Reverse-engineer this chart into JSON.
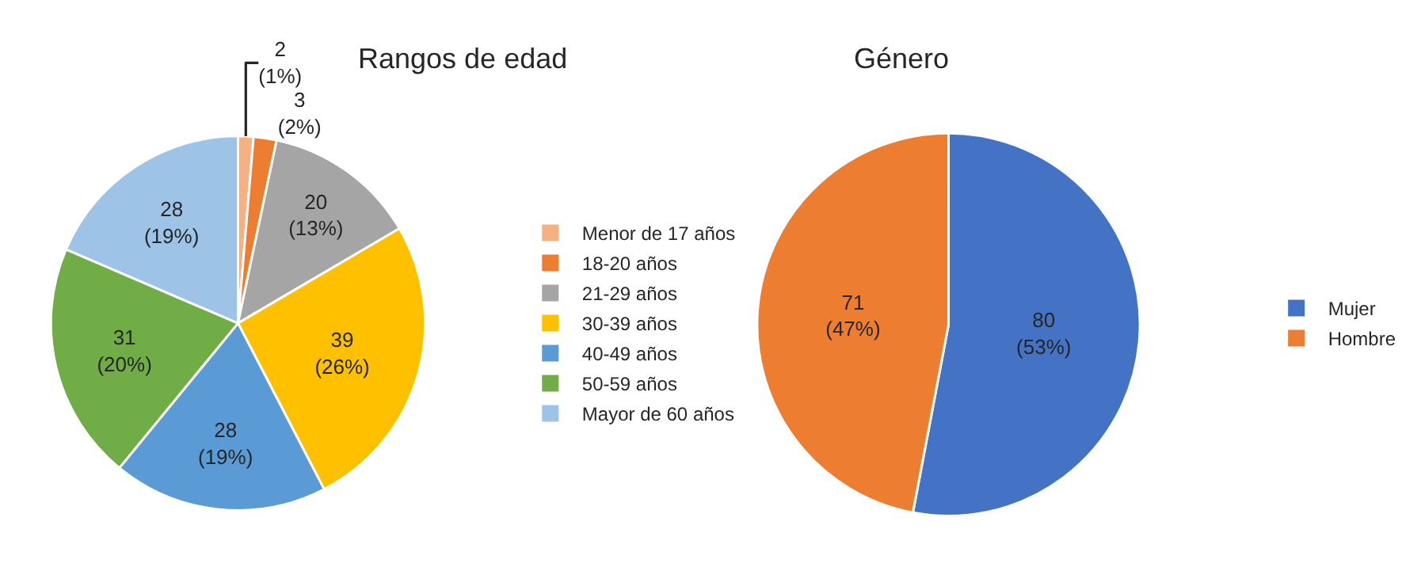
{
  "chart_data": [
    {
      "type": "pie",
      "title": "Rangos de edad",
      "categories": [
        "Menor de 17 años",
        "18-20 años",
        "21-29 años",
        "30-39 años",
        "40-49 años",
        "50-59 años",
        "Mayor de 60 años"
      ],
      "values": [
        2,
        3,
        20,
        39,
        28,
        31,
        28
      ],
      "colors": [
        "#f4b183",
        "#ed7d31",
        "#a5a5a5",
        "#ffc000",
        "#5b9bd5",
        "#70ad47",
        "#9dc3e6"
      ],
      "value_labels": [
        "2\n(1%)",
        "3\n(2%)",
        "20\n(13%)",
        "39\n(26%)",
        "28\n(19%)",
        "31\n(20%)",
        "28\n(19%)"
      ],
      "legend": "right"
    },
    {
      "type": "pie",
      "title": "Género",
      "categories": [
        "Mujer",
        "Hombre"
      ],
      "values": [
        80,
        71
      ],
      "colors": [
        "#4472c4",
        "#ed7d31"
      ],
      "value_labels": [
        "80\n(53%)",
        "71\n(47%)"
      ],
      "legend": "right"
    }
  ]
}
